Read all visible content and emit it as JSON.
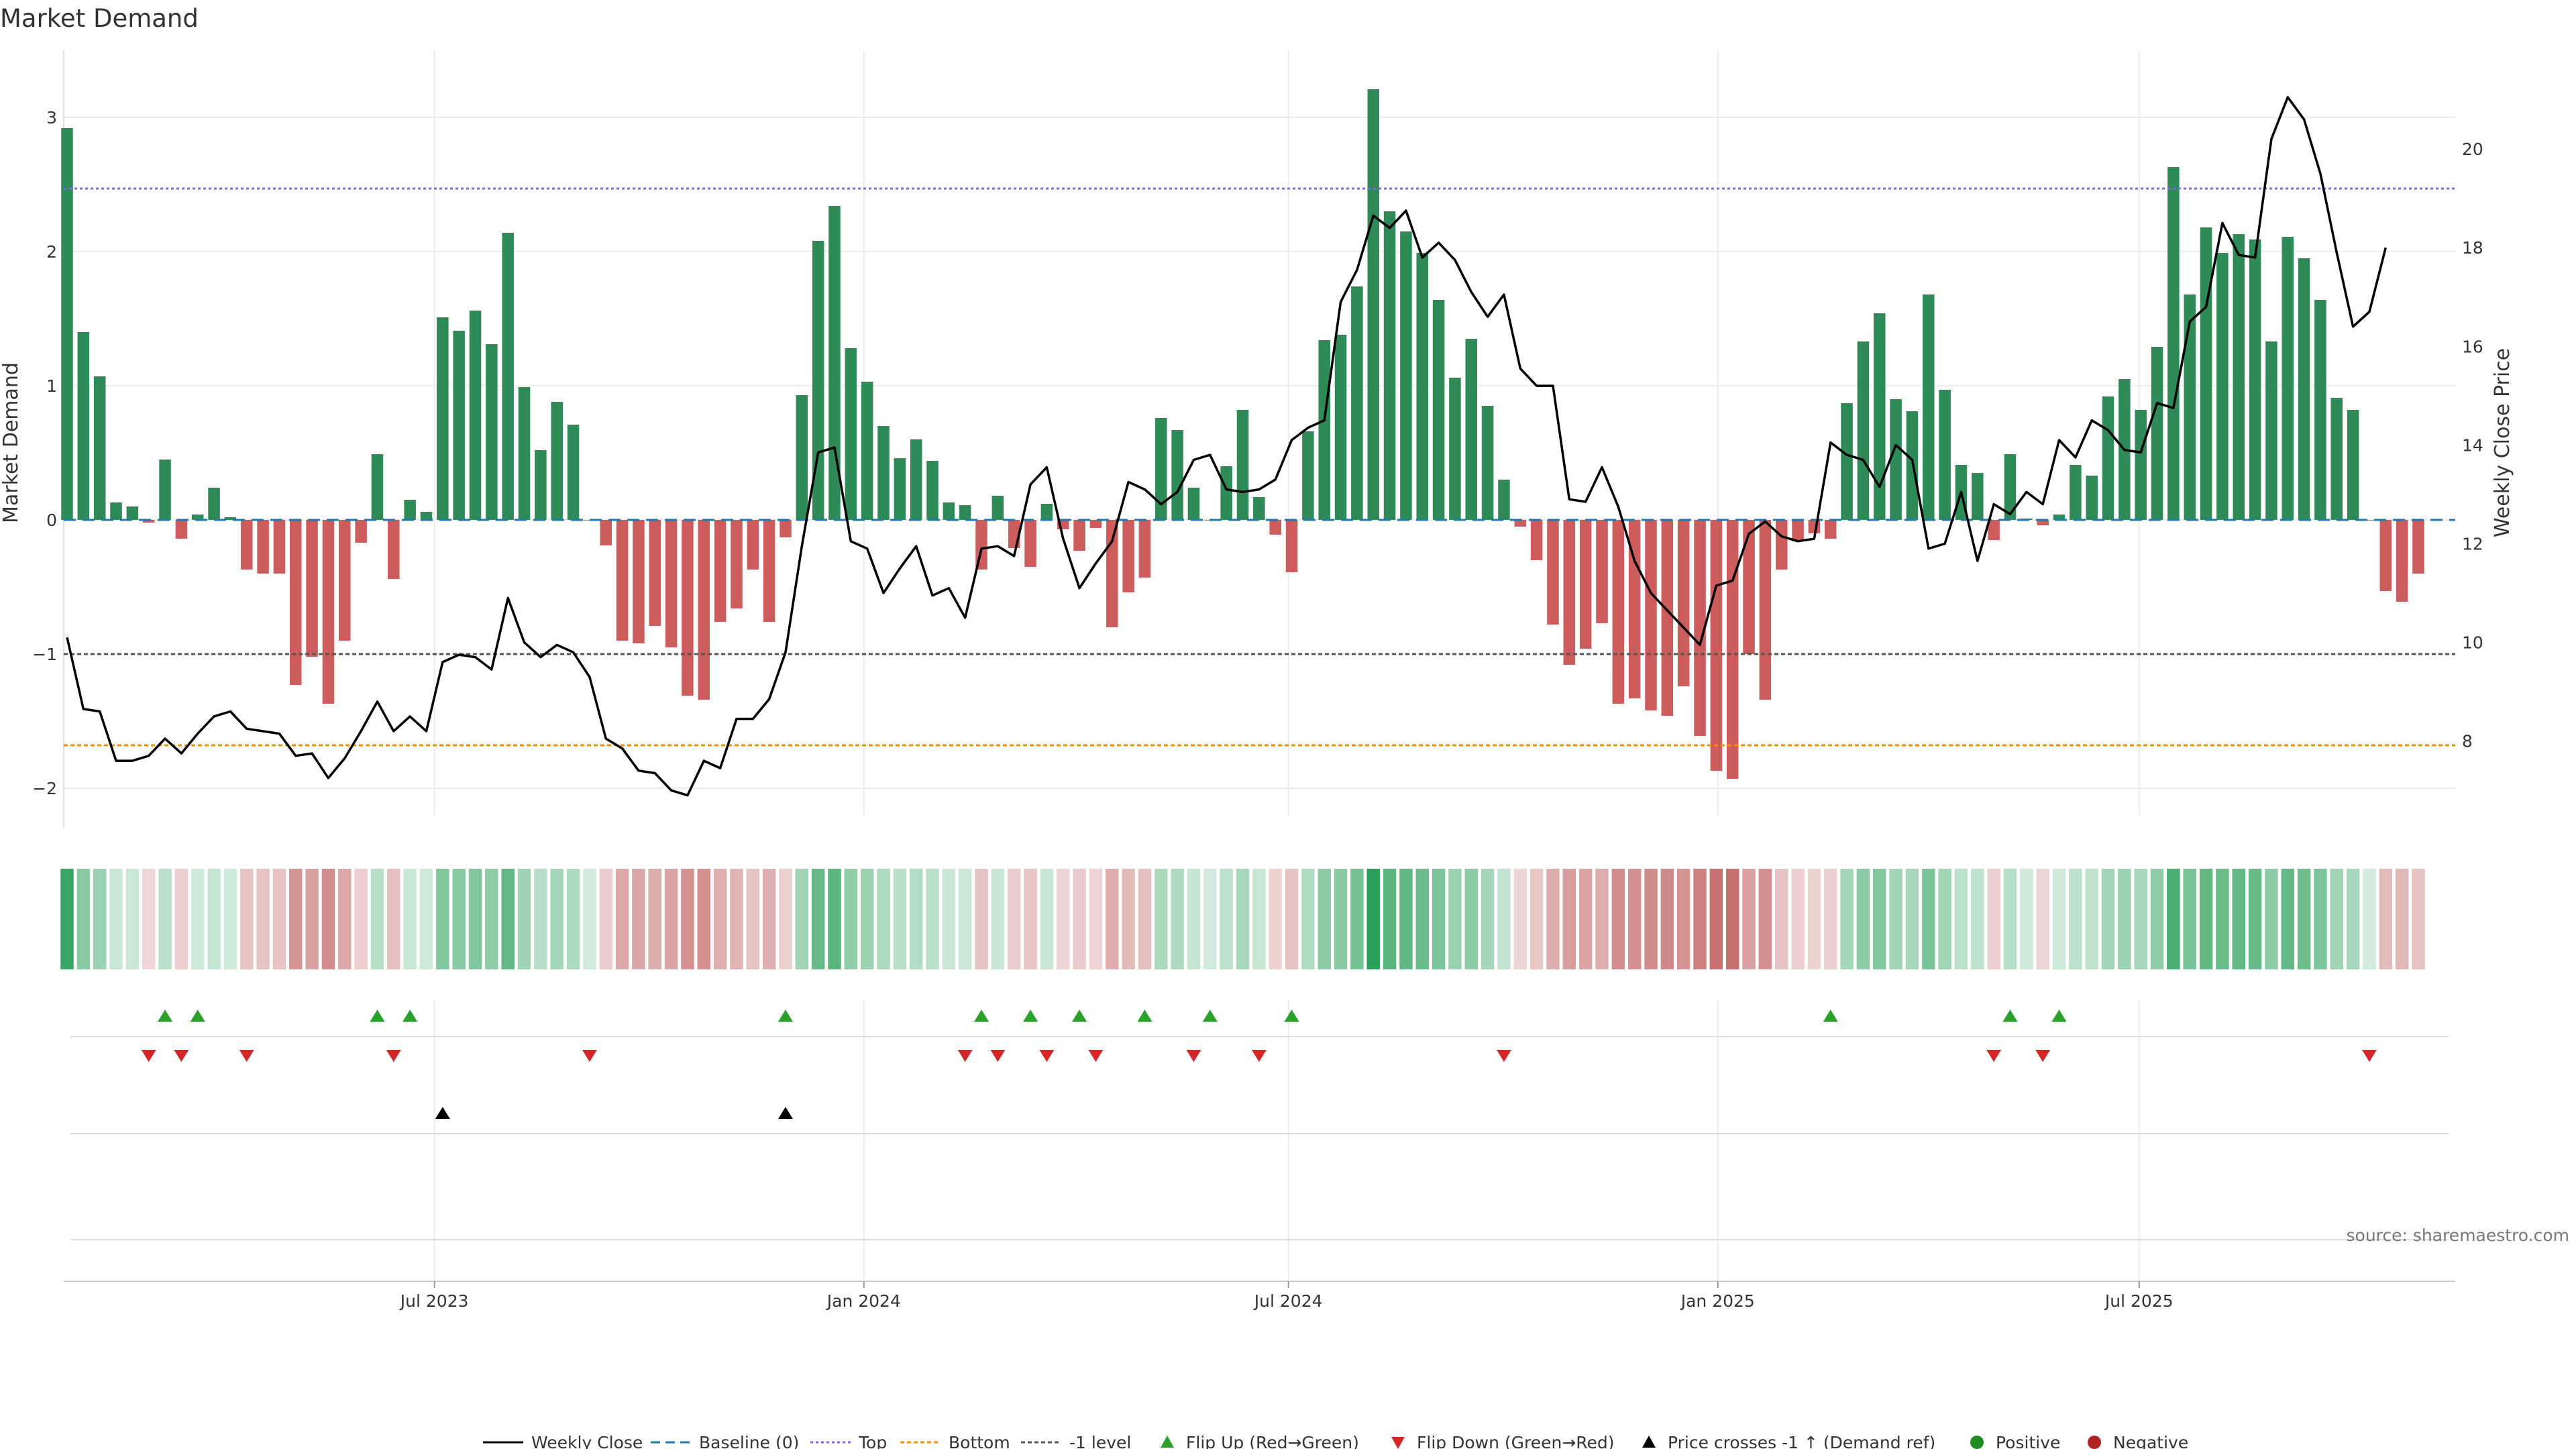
{
  "chart_data": {
    "title": "Market Demand",
    "type": "bar",
    "left_ylabel": "Market Demand",
    "right_ylabel": "Weekly Close Price",
    "left_ylim": [
      -2.2,
      3.5
    ],
    "left_yticks": [
      3,
      2,
      1,
      0,
      -1,
      -2
    ],
    "left_ytick_labels": [
      "3",
      "2",
      "1",
      "0",
      "−1",
      "−2"
    ],
    "right_ylim": [
      6.5,
      22.0
    ],
    "right_yticks": [
      8,
      10,
      12,
      14,
      16,
      18,
      20
    ],
    "right_ytick_labels": [
      "8",
      "10",
      "12",
      "14",
      "16",
      "18",
      "20"
    ],
    "reference_lines": {
      "top": 2.47,
      "bottom": -1.68,
      "minus_one": -1.0,
      "baseline": 0
    },
    "x_tick_labels": [
      {
        "label": "Jul 2023",
        "week": 22.5
      },
      {
        "label": "Jan 2024",
        "week": 48.8
      },
      {
        "label": "Jul 2024",
        "week": 74.8
      },
      {
        "label": "Jan 2025",
        "week": 101.1
      },
      {
        "label": "Jul 2025",
        "week": 126.9
      }
    ],
    "demand": [
      2.92,
      1.4,
      1.07,
      0.13,
      0.1,
      -0.02,
      0.45,
      -0.14,
      0.04,
      0.24,
      0.02,
      -0.37,
      -0.4,
      -0.4,
      -1.23,
      -1.02,
      -1.37,
      -0.9,
      -0.17,
      0.49,
      -0.44,
      0.15,
      0.06,
      1.51,
      1.41,
      1.56,
      1.31,
      2.14,
      0.99,
      0.52,
      0.88,
      0.71,
      0.0,
      -0.19,
      -0.9,
      -0.92,
      -0.79,
      -0.95,
      -1.31,
      -1.34,
      -0.76,
      -0.66,
      -0.37,
      -0.76,
      -0.13,
      0.93,
      2.08,
      2.34,
      1.28,
      1.03,
      0.7,
      0.46,
      0.6,
      0.44,
      0.13,
      0.11,
      -0.37,
      0.18,
      -0.21,
      -0.35,
      0.12,
      -0.07,
      -0.23,
      -0.06,
      -0.8,
      -0.54,
      -0.43,
      0.76,
      0.67,
      0.24,
      0.0,
      0.4,
      0.82,
      0.17,
      -0.11,
      -0.39,
      0.66,
      1.34,
      1.38,
      1.74,
      3.21,
      2.3,
      2.15,
      1.99,
      1.64,
      1.06,
      1.35,
      0.85,
      0.3,
      -0.05,
      -0.3,
      -0.78,
      -1.08,
      -0.96,
      -0.77,
      -1.37,
      -1.33,
      -1.42,
      -1.46,
      -1.24,
      -1.61,
      -1.87,
      -1.93,
      -1.0,
      -1.34,
      -0.37,
      -0.16,
      -0.1,
      -0.14,
      0.87,
      1.33,
      1.54,
      0.9,
      0.81,
      1.68,
      0.97,
      0.41,
      0.35,
      -0.15,
      0.49,
      0.01,
      -0.04,
      0.04,
      0.41,
      0.33,
      0.92,
      1.05,
      0.82,
      1.29,
      2.63,
      1.68,
      2.18,
      1.99,
      2.13,
      2.09,
      1.33,
      2.11,
      1.95,
      1.64,
      0.91,
      0.82,
      0.0,
      -0.53,
      -0.61,
      -0.4
    ],
    "price": [
      10.1,
      8.65,
      8.6,
      7.6,
      7.6,
      7.7,
      8.05,
      7.75,
      8.15,
      8.5,
      8.6,
      8.25,
      8.2,
      8.15,
      7.7,
      7.75,
      7.25,
      7.65,
      8.2,
      8.8,
      8.2,
      8.5,
      8.2,
      9.6,
      9.75,
      9.7,
      9.45,
      10.9,
      10.0,
      9.7,
      9.95,
      9.8,
      9.3,
      8.05,
      7.85,
      7.4,
      7.35,
      7.0,
      6.9,
      7.6,
      7.45,
      8.45,
      8.45,
      8.85,
      9.8,
      11.95,
      13.85,
      13.95,
      12.05,
      11.9,
      11.0,
      11.5,
      11.95,
      10.95,
      11.1,
      10.5,
      11.9,
      11.95,
      11.75,
      13.2,
      13.55,
      12.1,
      11.1,
      11.6,
      12.05,
      13.25,
      13.1,
      12.8,
      13.05,
      13.7,
      13.8,
      13.1,
      13.05,
      13.1,
      13.3,
      14.1,
      14.35,
      14.5,
      16.9,
      17.55,
      18.65,
      18.4,
      18.75,
      17.8,
      18.1,
      17.75,
      17.1,
      16.6,
      17.05,
      15.55,
      15.2,
      15.2,
      12.9,
      12.85,
      13.55,
      12.75,
      11.65,
      11.0,
      10.65,
      10.3,
      9.95,
      11.15,
      11.25,
      12.2,
      12.45,
      12.15,
      12.05,
      12.1,
      14.05,
      13.8,
      13.7,
      13.15,
      14.0,
      13.7,
      11.9,
      12.0,
      13.05,
      11.65,
      12.8,
      12.6,
      13.05,
      12.8,
      14.1,
      13.75,
      14.5,
      14.3,
      13.9,
      13.85,
      14.85,
      14.75,
      16.5,
      16.8,
      18.5,
      17.85,
      17.8,
      20.2,
      21.05,
      20.6,
      19.5,
      17.9,
      16.4,
      16.7,
      18.0
    ],
    "flip_up_weeks": [
      6,
      8,
      19,
      21,
      44,
      56,
      59,
      62,
      66,
      70,
      75,
      108,
      119,
      122
    ],
    "flip_down_weeks": [
      5,
      7,
      11,
      20,
      32,
      55,
      57,
      60,
      63,
      69,
      73,
      88,
      118,
      121,
      141
    ],
    "price_cross_weeks": [
      23,
      44
    ],
    "legend": [
      "Weekly Close",
      "Baseline (0)",
      "Top",
      "Bottom",
      "-1 level",
      "Flip Up (Red→Green)",
      "Flip Down (Green→Red)",
      "Price crosses -1 ↑ (Demand ref)",
      "Positive",
      "Negative"
    ],
    "source": "source: sharemaestro.com",
    "colors": {
      "positive": "#2e8b57",
      "negative": "#cd5c5c",
      "price_line": "#000000",
      "top_line": "#7b68ee",
      "bottom_line": "#ff8c00",
      "minus_one_line": "#555555",
      "baseline": "#1f77b4",
      "flip_up": "#2ca02c",
      "flip_down": "#d62728",
      "legend_positive_dot": "#228b22",
      "legend_negative_dot": "#b22222"
    }
  }
}
